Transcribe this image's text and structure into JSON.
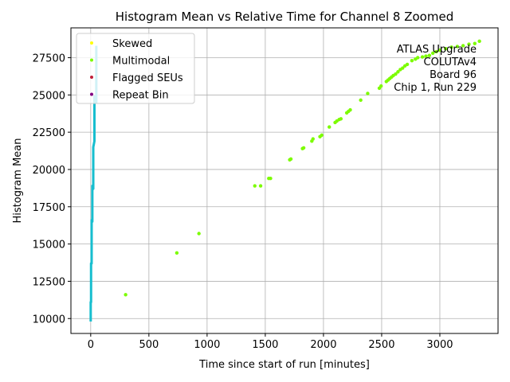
{
  "chart_data": {
    "type": "scatter",
    "title": "Histogram Mean vs Relative Time for Channel 8 Zoomed",
    "xlabel": "Time since start of run [minutes]",
    "ylabel": "Histogram Mean",
    "xlim": [
      -170,
      3500
    ],
    "ylim": [
      9000,
      29500
    ],
    "xticks": [
      0,
      500,
      1000,
      1500,
      2000,
      2500,
      3000
    ],
    "yticks": [
      10000,
      12500,
      15000,
      17500,
      20000,
      22500,
      25000,
      27500
    ],
    "grid": true,
    "legend_position": "top-left",
    "annotation": [
      "ATLAS Upgrade",
      "COLUTAv4",
      "Board 96",
      "Chip 1, Run 229"
    ],
    "series": [
      {
        "name": "Skewed",
        "color": "#ffff00",
        "points": []
      },
      {
        "name": "Multimodal",
        "color": "#7cfc00",
        "points": [
          [
            300,
            11600
          ],
          [
            740,
            14400
          ],
          [
            930,
            15700
          ],
          [
            1410,
            18900
          ],
          [
            1460,
            18900
          ],
          [
            1530,
            19400
          ],
          [
            1545,
            19400
          ],
          [
            1710,
            20650
          ],
          [
            1720,
            20700
          ],
          [
            1820,
            21400
          ],
          [
            1830,
            21450
          ],
          [
            1900,
            21900
          ],
          [
            1910,
            22050
          ],
          [
            1970,
            22200
          ],
          [
            1985,
            22300
          ],
          [
            2050,
            22850
          ],
          [
            2100,
            23150
          ],
          [
            2115,
            23250
          ],
          [
            2135,
            23350
          ],
          [
            2150,
            23400
          ],
          [
            2200,
            23800
          ],
          [
            2215,
            23900
          ],
          [
            2230,
            24000
          ],
          [
            2320,
            24650
          ],
          [
            2380,
            25100
          ],
          [
            2480,
            25450
          ],
          [
            2495,
            25600
          ],
          [
            2540,
            25900
          ],
          [
            2555,
            26000
          ],
          [
            2570,
            26100
          ],
          [
            2585,
            26200
          ],
          [
            2600,
            26300
          ],
          [
            2620,
            26400
          ],
          [
            2640,
            26550
          ],
          [
            2660,
            26700
          ],
          [
            2680,
            26800
          ],
          [
            2700,
            26950
          ],
          [
            2720,
            27050
          ],
          [
            2760,
            27300
          ],
          [
            2790,
            27400
          ],
          [
            2810,
            27500
          ],
          [
            2850,
            27550
          ],
          [
            2880,
            27600
          ],
          [
            2910,
            27650
          ],
          [
            2940,
            27800
          ],
          [
            2970,
            27900
          ],
          [
            3000,
            28000
          ],
          [
            3050,
            28100
          ],
          [
            3100,
            28200
          ],
          [
            3150,
            28250
          ],
          [
            3200,
            28300
          ],
          [
            3250,
            28400
          ],
          [
            3300,
            28450
          ],
          [
            3340,
            28600
          ]
        ]
      },
      {
        "name": "Flagged SEUs",
        "color": "#c0203a",
        "points": []
      },
      {
        "name": "Repeat Bin",
        "color": "#800080",
        "points": []
      }
    ],
    "trace": {
      "name": "Channel 8 trace",
      "color": "#17becf",
      "segments": [
        {
          "x": 0,
          "y0": 9800,
          "y1": 11100
        },
        {
          "x": 3,
          "y0": 11100,
          "y1": 13700
        },
        {
          "x": 8,
          "y0": 13700,
          "y1": 16600
        },
        {
          "x": 14,
          "y0": 16500,
          "y1": 18900
        },
        {
          "x": 22,
          "y0": 18700,
          "y1": 21500
        },
        {
          "x": 32,
          "y0": 21900,
          "y1": 24900
        },
        {
          "x": 48,
          "y0": 24500,
          "y1": 28300
        }
      ]
    }
  }
}
